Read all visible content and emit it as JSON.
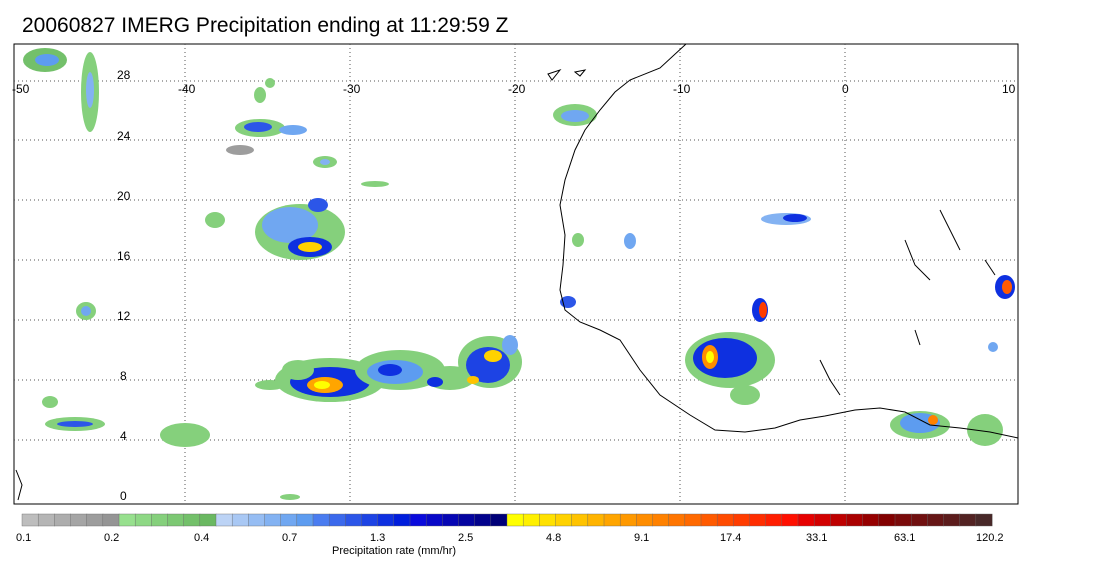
{
  "title": "20060827 IMERG Precipitation ending at 11:29:59 Z",
  "map": {
    "lon_ticks": [
      "-50",
      "-40",
      "-30",
      "-20",
      "-10",
      "0",
      "10"
    ],
    "lat_ticks": [
      "28",
      "24",
      "20",
      "16",
      "12",
      "8",
      "4",
      "0"
    ],
    "grid": true
  },
  "colorbar": {
    "title": "Precipitation rate (mm/hr)",
    "tick_labels": [
      "0.1",
      "0.2",
      "0.4",
      "0.7",
      "1.3",
      "2.5",
      "4.8",
      "9.1",
      "17.4",
      "33.1",
      "63.1",
      "120.2"
    ],
    "colors": [
      "#bdbdbd",
      "#b5b5b5",
      "#adadad",
      "#a5a5a5",
      "#9d9d9d",
      "#959595",
      "#97e08e",
      "#8ed885",
      "#85d07c",
      "#7cc873",
      "#73c06a",
      "#6ab861",
      "#bcd3f5",
      "#a9c8f4",
      "#96bdf3",
      "#83b2f2",
      "#70a7f1",
      "#5d9cf0",
      "#4a7cf0",
      "#3b69ec",
      "#2c56e8",
      "#1d43e4",
      "#0e30e0",
      "#001ddc",
      "#0a0adc",
      "#0808c8",
      "#0606b4",
      "#0404a0",
      "#02028c",
      "#000078",
      "#ffff00",
      "#fff000",
      "#ffe100",
      "#ffd200",
      "#ffc300",
      "#ffb400",
      "#ffa500",
      "#ff9900",
      "#ff8d00",
      "#ff8100",
      "#ff7500",
      "#ff6900",
      "#ff5a00",
      "#ff4b00",
      "#ff3c00",
      "#ff2d00",
      "#ff1e00",
      "#ff0f00",
      "#e60000",
      "#d20000",
      "#be0000",
      "#aa0000",
      "#960000",
      "#820000",
      "#7a0a0a",
      "#701010",
      "#661616",
      "#5c1c1c",
      "#522222",
      "#482828"
    ]
  }
}
